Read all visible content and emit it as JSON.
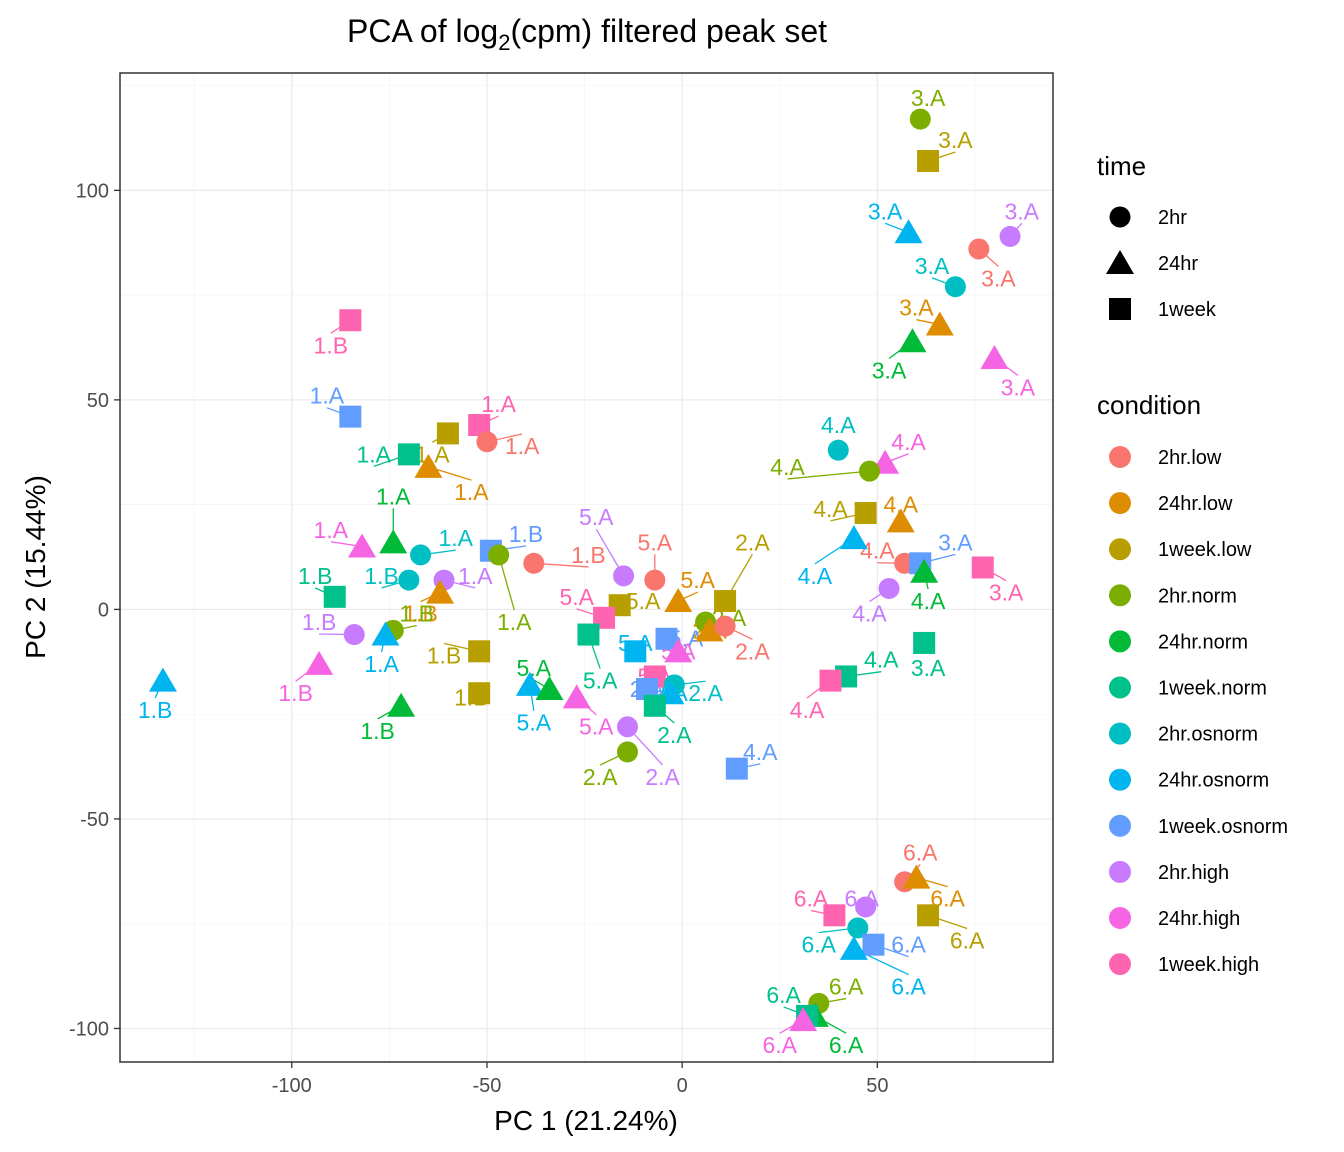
{
  "chart_data": {
    "type": "scatter",
    "title": {
      "main": "PCA of log",
      "sub": "2",
      "tail": "(cpm) filtered peak set"
    },
    "xlabel": "PC 1 (21.24%)",
    "ylabel": "PC 2 (15.44%)",
    "xlim": [
      -144,
      95
    ],
    "ylim": [
      -108,
      128
    ],
    "xticks": [
      -100,
      -50,
      0,
      50
    ],
    "yticks": [
      -100,
      -50,
      0,
      50,
      100
    ],
    "grid": true,
    "legend_position": "right",
    "legend_shape": {
      "title": "time",
      "items": [
        {
          "label": "2hr",
          "shape": "circle"
        },
        {
          "label": "24hr",
          "shape": "triangle"
        },
        {
          "label": "1week",
          "shape": "square"
        }
      ]
    },
    "legend_color": {
      "title": "condition",
      "items": [
        {
          "label": "2hr.low",
          "color": "#F8766D"
        },
        {
          "label": "24hr.low",
          "color": "#DE8C00"
        },
        {
          "label": "1week.low",
          "color": "#B79F00"
        },
        {
          "label": "2hr.norm",
          "color": "#7CAE00"
        },
        {
          "label": "24hr.norm",
          "color": "#00BA38"
        },
        {
          "label": "1week.norm",
          "color": "#00C08B"
        },
        {
          "label": "2hr.osnorm",
          "color": "#00BFC4"
        },
        {
          "label": "24hr.osnorm",
          "color": "#00B4F0"
        },
        {
          "label": "1week.osnorm",
          "color": "#619CFF"
        },
        {
          "label": "2hr.high",
          "color": "#C77CFF"
        },
        {
          "label": "24hr.high",
          "color": "#F564E3"
        },
        {
          "label": "1week.high",
          "color": "#FF64B0"
        }
      ]
    },
    "points": [
      {
        "x": 61,
        "y": 117,
        "shape": "circle",
        "cond": 3,
        "label": "3.A",
        "lx": 63,
        "ly": 122
      },
      {
        "x": 63,
        "y": 107,
        "shape": "square",
        "cond": 2,
        "label": "3.A",
        "lx": 70,
        "ly": 112
      },
      {
        "x": 58,
        "y": 90,
        "shape": "triangle",
        "cond": 7,
        "label": "3.A",
        "lx": 52,
        "ly": 95
      },
      {
        "x": 84,
        "y": 89,
        "shape": "circle",
        "cond": 9,
        "label": "3.A",
        "lx": 87,
        "ly": 95
      },
      {
        "x": 76,
        "y": 86,
        "shape": "circle",
        "cond": 0,
        "label": "3.A",
        "lx": 81,
        "ly": 79
      },
      {
        "x": 70,
        "y": 77,
        "shape": "circle",
        "cond": 6,
        "label": "3.A",
        "lx": 64,
        "ly": 82
      },
      {
        "x": 66,
        "y": 68,
        "shape": "triangle",
        "cond": 1,
        "label": "3.A",
        "lx": 60,
        "ly": 72
      },
      {
        "x": 59,
        "y": 64,
        "shape": "triangle",
        "cond": 4,
        "label": "3.A",
        "lx": 53,
        "ly": 57
      },
      {
        "x": 80,
        "y": 60,
        "shape": "triangle",
        "cond": 10,
        "label": "3.A",
        "lx": 86,
        "ly": 53
      },
      {
        "x": -85,
        "y": 69,
        "shape": "square",
        "cond": 11,
        "label": "1.B",
        "lx": -90,
        "ly": 63
      },
      {
        "x": -85,
        "y": 46,
        "shape": "square",
        "cond": 8,
        "label": "1.A",
        "lx": -91,
        "ly": 51
      },
      {
        "x": -52,
        "y": 44,
        "shape": "square",
        "cond": 11,
        "label": "1.A",
        "lx": -47,
        "ly": 49
      },
      {
        "x": -50,
        "y": 40,
        "shape": "circle",
        "cond": 0,
        "label": "1.A",
        "lx": -41,
        "ly": 39
      },
      {
        "x": -60,
        "y": 42,
        "shape": "square",
        "cond": 2,
        "label": "1.A",
        "lx": -64,
        "ly": 37
      },
      {
        "x": -70,
        "y": 37,
        "shape": "square",
        "cond": 5,
        "label": "1.A",
        "lx": -79,
        "ly": 37
      },
      {
        "x": -65,
        "y": 34,
        "shape": "triangle",
        "cond": 1,
        "label": "1.A",
        "lx": -54,
        "ly": 28
      },
      {
        "x": -74,
        "y": 16,
        "shape": "triangle",
        "cond": 4,
        "label": "1.A",
        "lx": -74,
        "ly": 27
      },
      {
        "x": -82,
        "y": 15,
        "shape": "triangle",
        "cond": 10,
        "label": "1.A",
        "lx": -90,
        "ly": 19
      },
      {
        "x": -67,
        "y": 13,
        "shape": "circle",
        "cond": 6,
        "label": "1.A",
        "lx": -58,
        "ly": 17
      },
      {
        "x": -49,
        "y": 14,
        "shape": "square",
        "cond": 8,
        "label": "1.B",
        "lx": -40,
        "ly": 18
      },
      {
        "x": -47,
        "y": 13,
        "shape": "circle",
        "cond": 3,
        "label": "1.A",
        "lx": -43,
        "ly": -3
      },
      {
        "x": -38,
        "y": 11,
        "shape": "circle",
        "cond": 0,
        "label": "1.B",
        "lx": -24,
        "ly": 13
      },
      {
        "x": -61,
        "y": 7,
        "shape": "circle",
        "cond": 9,
        "label": "1.A",
        "lx": -53,
        "ly": 8
      },
      {
        "x": -70,
        "y": 7,
        "shape": "circle",
        "cond": 6,
        "label": "1.B",
        "lx": -77,
        "ly": 8
      },
      {
        "x": -89,
        "y": 3,
        "shape": "square",
        "cond": 5,
        "label": "1.B",
        "lx": -94,
        "ly": 8
      },
      {
        "x": -62,
        "y": 4,
        "shape": "triangle",
        "cond": 1,
        "label": "1.B",
        "lx": -67,
        "ly": -1
      },
      {
        "x": -84,
        "y": -6,
        "shape": "circle",
        "cond": 9,
        "label": "1.B",
        "lx": -93,
        "ly": -3
      },
      {
        "x": -74,
        "y": -5,
        "shape": "circle",
        "cond": 3,
        "label": "1.B",
        "lx": -68,
        "ly": -1
      },
      {
        "x": -76,
        "y": -6,
        "shape": "triangle",
        "cond": 7,
        "label": "1.A",
        "lx": -77,
        "ly": -13
      },
      {
        "x": -52,
        "y": -10,
        "shape": "square",
        "cond": 2,
        "label": "1.B",
        "lx": -61,
        "ly": -11
      },
      {
        "x": -93,
        "y": -13,
        "shape": "triangle",
        "cond": 10,
        "label": "1.B",
        "lx": -99,
        "ly": -20
      },
      {
        "x": -133,
        "y": -17,
        "shape": "triangle",
        "cond": 7,
        "label": "1.B",
        "lx": -135,
        "ly": -24
      },
      {
        "x": -72,
        "y": -23,
        "shape": "triangle",
        "cond": 4,
        "label": "1.B",
        "lx": -78,
        "ly": -29
      },
      {
        "x": -52,
        "y": -20,
        "shape": "square",
        "cond": 2,
        "label": "1.B",
        "lx": -54,
        "ly": -21
      },
      {
        "x": -15,
        "y": 8,
        "shape": "circle",
        "cond": 9,
        "label": "5.A",
        "lx": -22,
        "ly": 22
      },
      {
        "x": -7,
        "y": 7,
        "shape": "circle",
        "cond": 0,
        "label": "5.A",
        "lx": -7,
        "ly": 16
      },
      {
        "x": -16,
        "y": 1,
        "shape": "square",
        "cond": 2,
        "label": "5.A",
        "lx": -10,
        "ly": 2
      },
      {
        "x": -20,
        "y": -2,
        "shape": "square",
        "cond": 11,
        "label": "5.A",
        "lx": -27,
        "ly": 3
      },
      {
        "x": -24,
        "y": -6,
        "shape": "square",
        "cond": 5,
        "label": "5.A",
        "lx": -21,
        "ly": -17
      },
      {
        "x": -1,
        "y": 2,
        "shape": "triangle",
        "cond": 1,
        "label": "5.A",
        "lx": 4,
        "ly": 7
      },
      {
        "x": 11,
        "y": 2,
        "shape": "square",
        "cond": 2,
        "label": "2.A",
        "lx": 18,
        "ly": 16
      },
      {
        "x": 6,
        "y": -3,
        "shape": "circle",
        "cond": 3,
        "label": "2.A",
        "lx": 12,
        "ly": -2
      },
      {
        "x": 7,
        "y": -5,
        "shape": "triangle",
        "cond": 1,
        "label": "2.A",
        "lx": 7,
        "ly": -5
      },
      {
        "x": 11,
        "y": -4,
        "shape": "circle",
        "cond": 0,
        "label": "2.A",
        "lx": 18,
        "ly": -10
      },
      {
        "x": -4,
        "y": -7,
        "shape": "square",
        "cond": 8,
        "label": "5.A",
        "lx": 1,
        "ly": -7
      },
      {
        "x": -12,
        "y": -10,
        "shape": "square",
        "cond": 7,
        "label": "5.A",
        "lx": -12,
        "ly": -8
      },
      {
        "x": -1,
        "y": -10,
        "shape": "triangle",
        "cond": 10,
        "label": "5.A",
        "lx": -1,
        "ly": -10
      },
      {
        "x": -7,
        "y": -16,
        "shape": "square",
        "cond": 11,
        "label": "5.A",
        "lx": -7,
        "ly": -16
      },
      {
        "x": -2,
        "y": -18,
        "shape": "circle",
        "cond": 6,
        "label": "2.A",
        "lx": 6,
        "ly": -20
      },
      {
        "x": -3,
        "y": -20,
        "shape": "triangle",
        "cond": 7,
        "label": "2.A",
        "lx": -3,
        "ly": -20
      },
      {
        "x": -9,
        "y": -19,
        "shape": "square",
        "cond": 8,
        "label": "2.A",
        "lx": -9,
        "ly": -19
      },
      {
        "x": -39,
        "y": -18,
        "shape": "triangle",
        "cond": 7,
        "label": "5.A",
        "lx": -38,
        "ly": -27
      },
      {
        "x": -34,
        "y": -19,
        "shape": "triangle",
        "cond": 4,
        "label": "5.A",
        "lx": -38,
        "ly": -14
      },
      {
        "x": -27,
        "y": -21,
        "shape": "triangle",
        "cond": 10,
        "label": "5.A",
        "lx": -22,
        "ly": -28
      },
      {
        "x": -7,
        "y": -23,
        "shape": "square",
        "cond": 5,
        "label": "2.A",
        "lx": -2,
        "ly": -30
      },
      {
        "x": -14,
        "y": -28,
        "shape": "circle",
        "cond": 9,
        "label": "2.A",
        "lx": -5,
        "ly": -40
      },
      {
        "x": -14,
        "y": -34,
        "shape": "circle",
        "cond": 3,
        "label": "2.A",
        "lx": -21,
        "ly": -40
      },
      {
        "x": 14,
        "y": -38,
        "shape": "square",
        "cond": 8,
        "label": "4.A",
        "lx": 20,
        "ly": -34
      },
      {
        "x": 40,
        "y": 38,
        "shape": "circle",
        "cond": 6,
        "label": "4.A",
        "lx": 40,
        "ly": 44
      },
      {
        "x": 52,
        "y": 35,
        "shape": "triangle",
        "cond": 10,
        "label": "4.A",
        "lx": 58,
        "ly": 40
      },
      {
        "x": 48,
        "y": 33,
        "shape": "circle",
        "cond": 3,
        "label": "4.A",
        "lx": 27,
        "ly": 34
      },
      {
        "x": 47,
        "y": 23,
        "shape": "square",
        "cond": 2,
        "label": "4.A",
        "lx": 38,
        "ly": 24
      },
      {
        "x": 56,
        "y": 21,
        "shape": "triangle",
        "cond": 1,
        "label": "4.A",
        "lx": 56,
        "ly": 25
      },
      {
        "x": 44,
        "y": 17,
        "shape": "triangle",
        "cond": 7,
        "label": "4.A",
        "lx": 34,
        "ly": 8
      },
      {
        "x": 57,
        "y": 11,
        "shape": "circle",
        "cond": 0,
        "label": "4.A",
        "lx": 50,
        "ly": 14
      },
      {
        "x": 61,
        "y": 11,
        "shape": "square",
        "cond": 8,
        "label": "3.A",
        "lx": 70,
        "ly": 16
      },
      {
        "x": 62,
        "y": 9,
        "shape": "triangle",
        "cond": 4,
        "label": "4.A",
        "lx": 63,
        "ly": 2
      },
      {
        "x": 53,
        "y": 5,
        "shape": "circle",
        "cond": 9,
        "label": "4.A",
        "lx": 48,
        "ly": -1
      },
      {
        "x": 77,
        "y": 10,
        "shape": "square",
        "cond": 11,
        "label": "3.A",
        "lx": 83,
        "ly": 4
      },
      {
        "x": 62,
        "y": -8,
        "shape": "square",
        "cond": 5,
        "label": "3.A",
        "lx": 63,
        "ly": -14
      },
      {
        "x": 42,
        "y": -16,
        "shape": "square",
        "cond": 5,
        "label": "4.A",
        "lx": 51,
        "ly": -12
      },
      {
        "x": 38,
        "y": -17,
        "shape": "square",
        "cond": 11,
        "label": "4.A",
        "lx": 32,
        "ly": -24
      },
      {
        "x": 57,
        "y": -65,
        "shape": "circle",
        "cond": 0,
        "label": "6.A",
        "lx": 61,
        "ly": -58
      },
      {
        "x": 60,
        "y": -64,
        "shape": "triangle",
        "cond": 1,
        "label": "6.A",
        "lx": 68,
        "ly": -69
      },
      {
        "x": 47,
        "y": -71,
        "shape": "circle",
        "cond": 9,
        "label": "6.A",
        "lx": 46,
        "ly": -69
      },
      {
        "x": 63,
        "y": -73,
        "shape": "square",
        "cond": 2,
        "label": "6.A",
        "lx": 73,
        "ly": -79
      },
      {
        "x": 39,
        "y": -73,
        "shape": "square",
        "cond": 11,
        "label": "6.A",
        "lx": 33,
        "ly": -69
      },
      {
        "x": 45,
        "y": -76,
        "shape": "circle",
        "cond": 6,
        "label": "6.A",
        "lx": 35,
        "ly": -80
      },
      {
        "x": 49,
        "y": -80,
        "shape": "square",
        "cond": 8,
        "label": "6.A",
        "lx": 58,
        "ly": -80
      },
      {
        "x": 44,
        "y": -81,
        "shape": "triangle",
        "cond": 7,
        "label": "6.A",
        "lx": 58,
        "ly": -90
      },
      {
        "x": 35,
        "y": -94,
        "shape": "circle",
        "cond": 3,
        "label": "6.A",
        "lx": 42,
        "ly": -90
      },
      {
        "x": 34,
        "y": -97,
        "shape": "triangle",
        "cond": 4,
        "label": "6.A",
        "lx": 42,
        "ly": -104
      },
      {
        "x": 32,
        "y": -97,
        "shape": "square",
        "cond": 5,
        "label": "6.A",
        "lx": 26,
        "ly": -92
      },
      {
        "x": 31,
        "y": -98,
        "shape": "triangle",
        "cond": 10,
        "label": "6.A",
        "lx": 25,
        "ly": -104
      }
    ]
  }
}
